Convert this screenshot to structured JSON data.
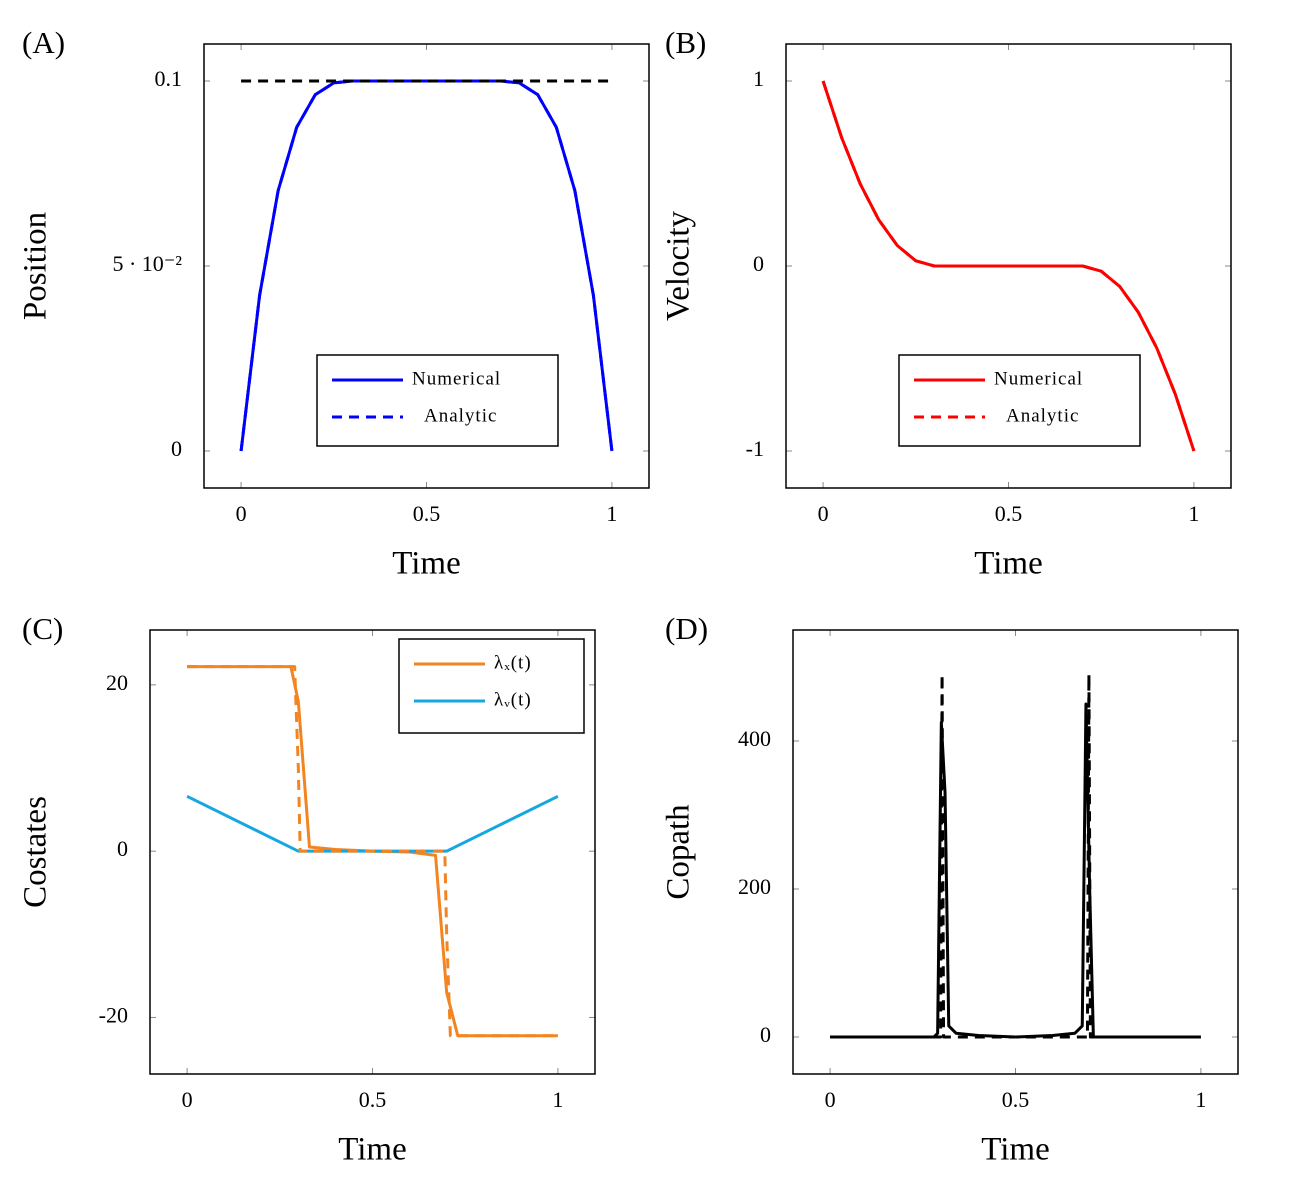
{
  "chart_data": [
    {
      "type": "line",
      "panel": "(A)",
      "xlabel": "Time",
      "ylabel": "Position",
      "xlim": [
        -0.1,
        1.1
      ],
      "ylim": [
        -0.01,
        0.11
      ],
      "xticks": [
        0,
        0.5,
        1
      ],
      "yticks": [
        0,
        {
          "value": 0.05,
          "label": "5 · 10⁻²"
        },
        0.1
      ],
      "legend": "lower right",
      "series": [
        {
          "name": "Numerical",
          "color": "#0000ff",
          "dash": false,
          "x": [
            0,
            0.05,
            0.1,
            0.15,
            0.2,
            0.25,
            0.3,
            0.35,
            0.4,
            0.45,
            0.5,
            0.55,
            0.6,
            0.65,
            0.7,
            0.75,
            0.8,
            0.85,
            0.9,
            0.95,
            1
          ],
          "values": [
            0,
            0.0421,
            0.0704,
            0.0875,
            0.0963,
            0.0995,
            0.1,
            0.1,
            0.1,
            0.1,
            0.1,
            0.1,
            0.1,
            0.1,
            0.1,
            0.0995,
            0.0963,
            0.0875,
            0.0704,
            0.0421,
            0
          ]
        },
        {
          "name": "Analytic",
          "color": "#0000ff",
          "dash": true,
          "x": [
            0,
            0.05,
            0.1,
            0.15,
            0.2,
            0.25,
            0.3,
            0.35,
            0.4,
            0.45,
            0.5,
            0.55,
            0.6,
            0.65,
            0.7,
            0.75,
            0.8,
            0.85,
            0.9,
            0.95,
            1
          ],
          "values": [
            0,
            0.0421,
            0.0704,
            0.0875,
            0.0963,
            0.0995,
            0.1,
            0.1,
            0.1,
            0.1,
            0.1,
            0.1,
            0.1,
            0.1,
            0.1,
            0.0995,
            0.0963,
            0.0875,
            0.0704,
            0.0421,
            0
          ]
        },
        {
          "color": "#000000",
          "dash": true,
          "x": [
            0,
            1
          ],
          "values": [
            0.1,
            0.1
          ]
        }
      ]
    },
    {
      "type": "line",
      "panel": "(B)",
      "xlabel": "Time",
      "ylabel": "Velocity",
      "xlim": [
        -0.1,
        1.1
      ],
      "ylim": [
        -1.2,
        1.2
      ],
      "xticks": [
        0,
        0.5,
        1
      ],
      "yticks": [
        -1,
        0,
        1
      ],
      "legend": "lower right",
      "series": [
        {
          "name": "Numerical",
          "color": "#ff0000",
          "dash": false,
          "x": [
            0,
            0.05,
            0.1,
            0.15,
            0.2,
            0.25,
            0.3,
            0.35,
            0.4,
            0.45,
            0.5,
            0.55,
            0.6,
            0.65,
            0.7,
            0.75,
            0.8,
            0.85,
            0.9,
            0.95,
            1
          ],
          "values": [
            1,
            0.694,
            0.444,
            0.25,
            0.111,
            0.028,
            0,
            0,
            0,
            0,
            0,
            0,
            0,
            0,
            0,
            -0.028,
            -0.111,
            -0.25,
            -0.444,
            -0.694,
            -1
          ]
        },
        {
          "name": "Analytic",
          "color": "#ff0000",
          "dash": true,
          "x": [
            0,
            0.05,
            0.1,
            0.15,
            0.2,
            0.25,
            0.3,
            0.35,
            0.4,
            0.45,
            0.5,
            0.55,
            0.6,
            0.65,
            0.7,
            0.75,
            0.8,
            0.85,
            0.9,
            0.95,
            1
          ],
          "values": [
            1,
            0.694,
            0.444,
            0.25,
            0.111,
            0.028,
            0,
            0,
            0,
            0,
            0,
            0,
            0,
            0,
            0,
            -0.028,
            -0.111,
            -0.25,
            -0.444,
            -0.694,
            -1
          ]
        }
      ]
    },
    {
      "type": "line",
      "panel": "(C)",
      "xlabel": "Time",
      "ylabel": "Costates",
      "xlim": [
        -0.1,
        1.1
      ],
      "ylim": [
        -26.8,
        26.6
      ],
      "xticks": [
        0,
        0.5,
        1
      ],
      "yticks": [
        -20,
        0,
        20
      ],
      "legend": "upper right",
      "series": [
        {
          "name": "λₓ(t)",
          "color": "#f28522",
          "dash": false,
          "x": [
            0,
            0.28,
            0.3,
            0.33,
            0.4,
            0.5,
            0.6,
            0.67,
            0.7,
            0.73,
            1
          ],
          "values": [
            22.2,
            22.2,
            18,
            0.5,
            0.2,
            0,
            -0.1,
            -0.5,
            -17,
            -22.2,
            -22.2
          ]
        },
        {
          "name": "λᵥ(t)",
          "color": "#17a7e0",
          "dash": false,
          "x": [
            0,
            0.3,
            0.5,
            0.7,
            1
          ],
          "values": [
            6.6,
            0,
            0,
            0,
            6.6
          ]
        },
        {
          "color": "#f28522",
          "dash": true,
          "x": [
            0,
            0.29,
            0.3,
            0.305,
            0.5,
            0.695,
            0.7,
            0.71,
            1
          ],
          "values": [
            22.2,
            22.2,
            10,
            0,
            0,
            0,
            -10,
            -22.2,
            -22.2
          ]
        }
      ]
    },
    {
      "type": "line",
      "panel": "(D)",
      "xlabel": "Time",
      "ylabel": "Copath",
      "xlim": [
        -0.1,
        1.1
      ],
      "ylim": [
        -50,
        550
      ],
      "xticks": [
        0,
        0.5,
        1
      ],
      "yticks": [
        0,
        200,
        400
      ],
      "series": [
        {
          "color": "#000000",
          "dash": false,
          "x": [
            0,
            0.28,
            0.29,
            0.3,
            0.31,
            0.32,
            0.34,
            0.4,
            0.5,
            0.6,
            0.66,
            0.68,
            0.69,
            0.7,
            0.71,
            1
          ],
          "values": [
            0,
            0,
            5,
            425,
            330,
            15,
            5,
            2,
            0,
            2,
            5,
            15,
            450,
            200,
            0,
            0
          ]
        },
        {
          "color": "#000000",
          "dash": true,
          "x": [
            0,
            0.298,
            0.302,
            0.306,
            0.694,
            0.698,
            0.702,
            1
          ],
          "values": [
            0,
            0,
            490,
            0,
            0,
            490,
            0,
            0
          ]
        }
      ]
    }
  ]
}
